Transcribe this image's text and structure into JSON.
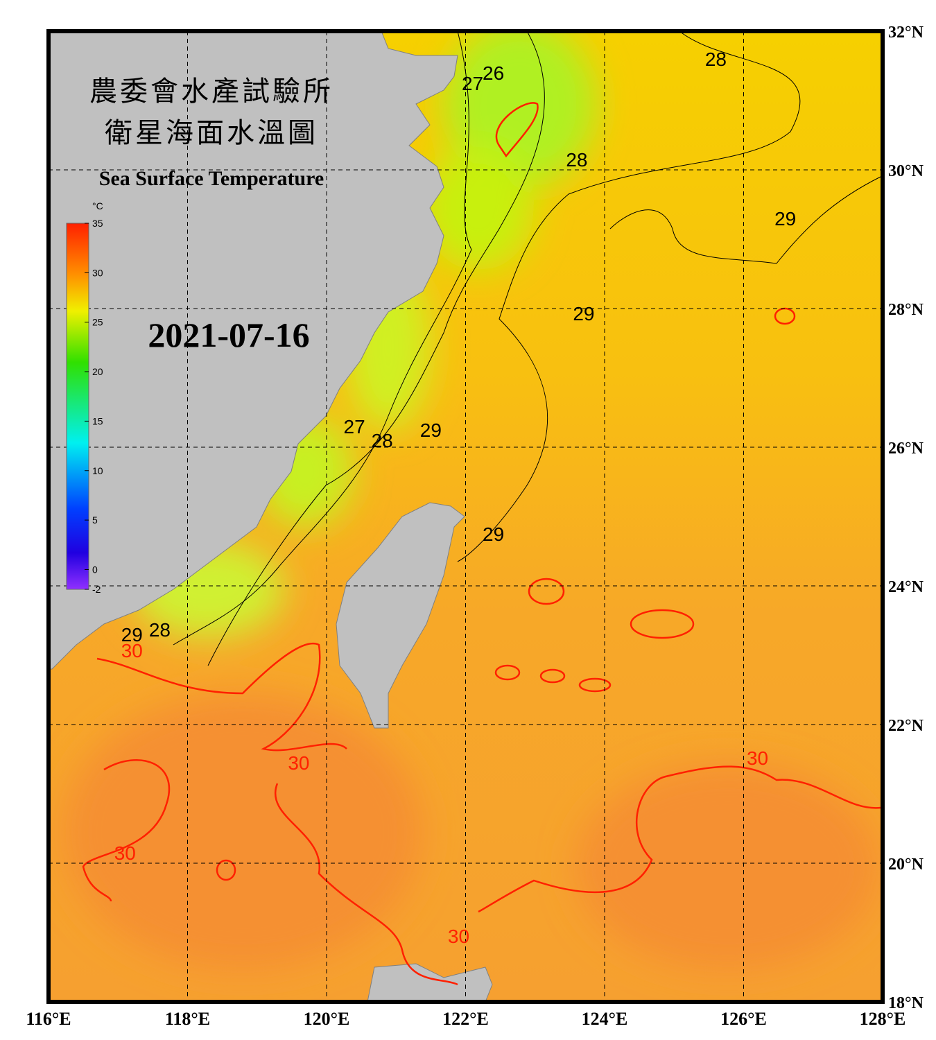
{
  "chart_data": {
    "type": "map",
    "title": "農委會水產試驗所",
    "subtitle": "衛星海面水溫圖",
    "caption": "Sea Surface Temperature",
    "date": "2021-07-16",
    "xlim": [
      116,
      128
    ],
    "ylim": [
      18,
      32
    ],
    "xticks": [
      {
        "value": 116,
        "label": "116°E"
      },
      {
        "value": 118,
        "label": "118°E"
      },
      {
        "value": 120,
        "label": "120°E"
      },
      {
        "value": 122,
        "label": "122°E"
      },
      {
        "value": 124,
        "label": "124°E"
      },
      {
        "value": 126,
        "label": "126°E"
      },
      {
        "value": 128,
        "label": "128°E"
      }
    ],
    "yticks": [
      {
        "value": 18,
        "label": "18°N"
      },
      {
        "value": 20,
        "label": "20°N"
      },
      {
        "value": 22,
        "label": "22°N"
      },
      {
        "value": 24,
        "label": "24°N"
      },
      {
        "value": 26,
        "label": "26°N"
      },
      {
        "value": 28,
        "label": "28°N"
      },
      {
        "value": 30,
        "label": "30°N"
      },
      {
        "value": 32,
        "label": "32°N"
      }
    ],
    "grid": true,
    "colorbar": {
      "unit": "°C",
      "range": [
        -2,
        35
      ],
      "ticks": [
        35,
        30,
        25,
        20,
        15,
        10,
        5,
        0,
        -2
      ]
    },
    "contour_labels": [
      {
        "text": "28",
        "lon": 125.6,
        "lat": 31.6,
        "color": "#000000"
      },
      {
        "text": "26",
        "lon": 122.4,
        "lat": 31.4,
        "color": "#000000"
      },
      {
        "text": "27",
        "lon": 122.1,
        "lat": 31.25,
        "color": "#000000"
      },
      {
        "text": "28",
        "lon": 123.6,
        "lat": 30.15,
        "color": "#000000"
      },
      {
        "text": "29",
        "lon": 126.6,
        "lat": 29.3,
        "color": "#000000"
      },
      {
        "text": "29",
        "lon": 123.7,
        "lat": 27.93,
        "color": "#000000"
      },
      {
        "text": "29",
        "lon": 121.5,
        "lat": 26.25,
        "color": "#000000"
      },
      {
        "text": "27",
        "lon": 120.4,
        "lat": 26.3,
        "color": "#000000"
      },
      {
        "text": "28",
        "lon": 120.8,
        "lat": 26.1,
        "color": "#000000"
      },
      {
        "text": "29",
        "lon": 122.4,
        "lat": 24.75,
        "color": "#000000"
      },
      {
        "text": "29",
        "lon": 117.2,
        "lat": 23.3,
        "color": "#000000"
      },
      {
        "text": "28",
        "lon": 117.6,
        "lat": 23.37,
        "color": "#000000"
      },
      {
        "text": "30",
        "lon": 117.2,
        "lat": 23.07,
        "color": "#ff2000"
      },
      {
        "text": "30",
        "lon": 119.6,
        "lat": 21.45,
        "color": "#ff2000"
      },
      {
        "text": "30",
        "lon": 126.2,
        "lat": 21.52,
        "color": "#ff2000"
      },
      {
        "text": "30",
        "lon": 117.1,
        "lat": 20.15,
        "color": "#ff2000"
      },
      {
        "text": "30",
        "lon": 121.9,
        "lat": 18.95,
        "color": "#ff2000"
      }
    ]
  }
}
